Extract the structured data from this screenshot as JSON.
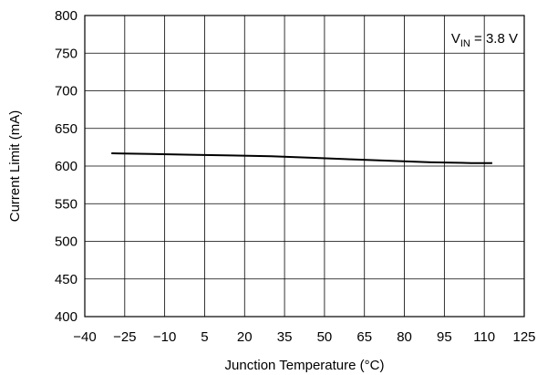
{
  "chart_data": {
    "type": "line",
    "xlabel": "Junction Temperature (°C)",
    "ylabel": "Current Limit (mA)",
    "xlim": [
      -40,
      125
    ],
    "ylim": [
      400,
      800
    ],
    "xticks": [
      -40,
      -25,
      -10,
      5,
      20,
      35,
      50,
      65,
      80,
      95,
      110,
      125
    ],
    "xtick_labels": [
      "−40",
      "−25",
      "−10",
      "5",
      "20",
      "35",
      "50",
      "65",
      "80",
      "95",
      "110",
      "125"
    ],
    "yticks": [
      400,
      450,
      500,
      550,
      600,
      650,
      700,
      750,
      800
    ],
    "ytick_labels": [
      "400",
      "450",
      "500",
      "550",
      "600",
      "650",
      "700",
      "750",
      "800"
    ],
    "grid": true,
    "annotation": {
      "prefix": "V",
      "subscript": "IN",
      "text": " = 3.8 V"
    },
    "series": [
      {
        "x": [
          -30,
          -15,
          0,
          15,
          30,
          45,
          60,
          75,
          90,
          105,
          113
        ],
        "y": [
          617,
          616,
          615,
          614,
          613,
          611,
          609,
          607,
          605,
          604,
          604
        ]
      }
    ]
  }
}
